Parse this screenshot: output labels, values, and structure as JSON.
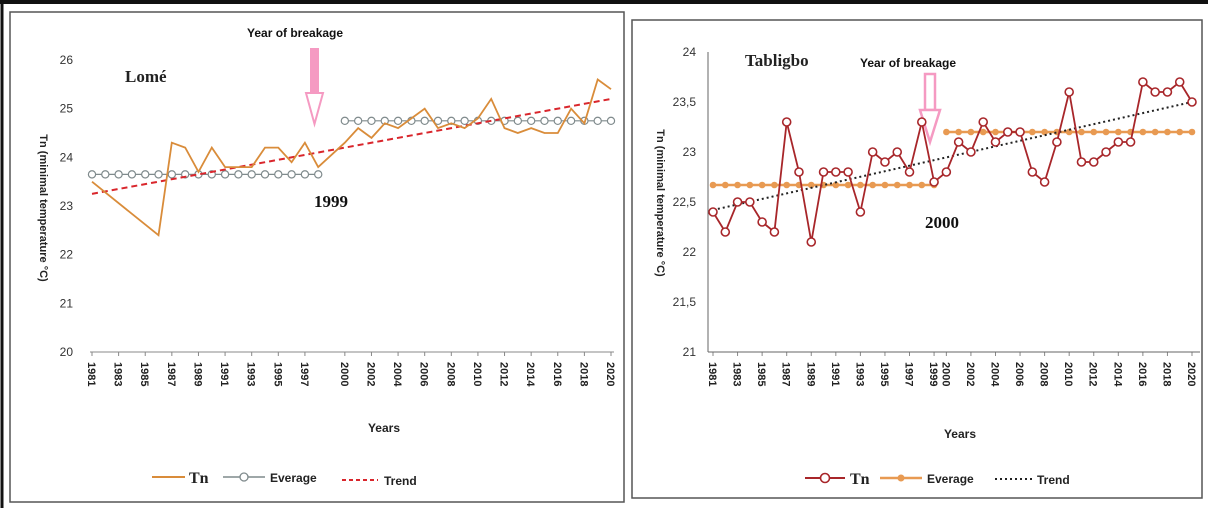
{
  "chart_data": [
    {
      "type": "line",
      "station": "Lomé",
      "breakage_label": "Year of breakage",
      "break_year": 1999,
      "break_year_text": "1999",
      "ylabel": "Tn (minimal temperature °C)",
      "xlabel": "Years",
      "ylim": [
        20,
        26
      ],
      "yticks": [
        "20",
        "21",
        "22",
        "23",
        "24",
        "25",
        "26"
      ],
      "xticks": [
        "1981",
        "1983",
        "1985",
        "1987",
        "1989",
        "1991",
        "1993",
        "1995",
        "1997",
        "2000",
        "2002",
        "2004",
        "2006",
        "2008",
        "2010",
        "2012",
        "2014",
        "2016",
        "2018",
        "2020"
      ],
      "legend": [
        "Tn",
        "Everage",
        "Trend"
      ],
      "colors": {
        "tn": "#d98c3a",
        "average": "#7f8a8c",
        "trend": "#d9262c"
      },
      "series": [
        {
          "name": "Tn",
          "x": [
            1981,
            1986,
            1987,
            1988,
            1989,
            1990,
            1991,
            1992,
            1993,
            1994,
            1995,
            1996,
            1997,
            1998,
            2000,
            2001,
            2002,
            2003,
            2004,
            2005,
            2006,
            2007,
            2008,
            2009,
            2010,
            2011,
            2012,
            2013,
            2014,
            2015,
            2016,
            2017,
            2018,
            2019,
            2020
          ],
          "y": [
            23.5,
            22.4,
            24.3,
            24.2,
            23.7,
            24.2,
            23.8,
            23.8,
            23.8,
            24.2,
            24.2,
            23.9,
            24.3,
            23.8,
            24.3,
            24.6,
            24.4,
            24.7,
            24.6,
            24.8,
            25.0,
            24.6,
            24.7,
            24.6,
            24.8,
            25.2,
            24.6,
            24.5,
            24.6,
            24.5,
            24.5,
            25.0,
            24.7,
            25.6,
            25.4
          ]
        },
        {
          "name": "Everage",
          "segments": [
            {
              "x": [
                1981,
                1982,
                1983,
                1984,
                1985,
                1986,
                1987,
                1988,
                1989,
                1990,
                1991,
                1992,
                1993,
                1994,
                1995,
                1996,
                1997,
                1998
              ],
              "y": 23.65
            },
            {
              "x": [
                2000,
                2001,
                2002,
                2003,
                2004,
                2005,
                2006,
                2007,
                2008,
                2009,
                2010,
                2011,
                2012,
                2013,
                2014,
                2015,
                2016,
                2017,
                2018,
                2019,
                2020
              ],
              "y": 24.75
            }
          ]
        },
        {
          "name": "Trend",
          "x": [
            1981,
            2020
          ],
          "y": [
            23.25,
            25.2
          ]
        }
      ]
    },
    {
      "type": "line",
      "station": "Tabligbo",
      "breakage_label": "Year of breakage",
      "break_year": 2000,
      "break_year_text": "2000",
      "ylabel": "Tn (minimal temperature °C)",
      "xlabel": "Years",
      "ylim": [
        21,
        24
      ],
      "yticks": [
        "21",
        "21,5",
        "22",
        "22,5",
        "23",
        "23,5",
        "24"
      ],
      "xticks": [
        "1981",
        "1983",
        "1985",
        "1987",
        "1989",
        "1991",
        "1993",
        "1995",
        "1997",
        "1999",
        "2000",
        "2002",
        "2004",
        "2006",
        "2008",
        "2010",
        "2012",
        "2014",
        "2016",
        "2018",
        "2020"
      ],
      "legend": [
        "Tn",
        "Everage",
        "Trend"
      ],
      "colors": {
        "tn": "#a8262a",
        "average": "#e89a52",
        "trend": "#222222"
      },
      "series": [
        {
          "name": "Tn",
          "x": [
            1981,
            1982,
            1983,
            1984,
            1985,
            1986,
            1987,
            1988,
            1989,
            1990,
            1991,
            1992,
            1993,
            1994,
            1995,
            1996,
            1997,
            1998,
            1999,
            2000,
            2001,
            2002,
            2003,
            2004,
            2005,
            2006,
            2007,
            2008,
            2009,
            2010,
            2011,
            2012,
            2013,
            2014,
            2015,
            2016,
            2017,
            2018,
            2019,
            2020
          ],
          "y": [
            22.4,
            22.2,
            22.5,
            22.5,
            22.3,
            22.2,
            23.3,
            22.8,
            22.1,
            22.8,
            22.8,
            22.8,
            22.4,
            23.0,
            22.9,
            23.0,
            22.8,
            23.3,
            22.7,
            22.8,
            23.1,
            23.0,
            23.3,
            23.1,
            23.2,
            23.2,
            22.8,
            22.7,
            23.1,
            23.6,
            22.9,
            22.9,
            23.0,
            23.1,
            23.1,
            23.7,
            23.6,
            23.6,
            23.7,
            23.5
          ]
        },
        {
          "name": "Everage",
          "segments": [
            {
              "x": [
                1981,
                1982,
                1983,
                1984,
                1985,
                1986,
                1987,
                1988,
                1989,
                1990,
                1991,
                1992,
                1993,
                1994,
                1995,
                1996,
                1997,
                1998,
                1999
              ],
              "y": 22.67
            },
            {
              "x": [
                2000,
                2001,
                2002,
                2003,
                2004,
                2005,
                2006,
                2007,
                2008,
                2009,
                2010,
                2011,
                2012,
                2013,
                2014,
                2015,
                2016,
                2017,
                2018,
                2019,
                2020
              ],
              "y": 23.2
            }
          ]
        },
        {
          "name": "Trend",
          "x": [
            1981,
            2020
          ],
          "y": [
            22.42,
            23.5
          ]
        }
      ]
    }
  ]
}
